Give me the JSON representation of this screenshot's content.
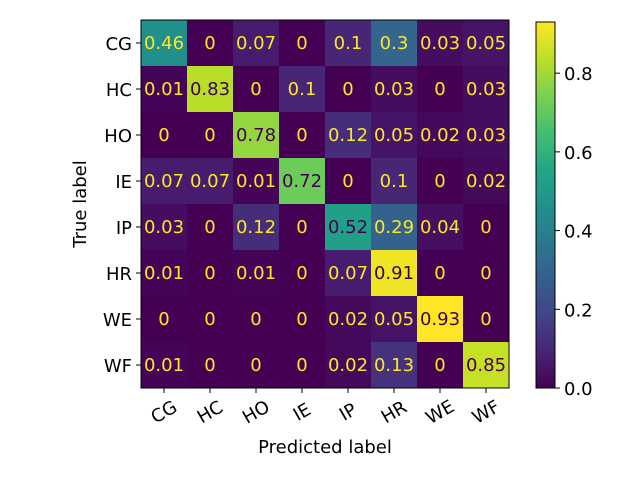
{
  "chart_data": {
    "type": "heatmap",
    "title": "",
    "xlabel": "Predicted label",
    "ylabel": "True label",
    "x_categories": [
      "CG",
      "HC",
      "HO",
      "IE",
      "IP",
      "HR",
      "WE",
      "WF"
    ],
    "y_categories": [
      "CG",
      "HC",
      "HO",
      "IE",
      "IP",
      "HR",
      "WE",
      "WF"
    ],
    "values": [
      [
        0.46,
        0,
        0.07,
        0,
        0.1,
        0.3,
        0.03,
        0.05
      ],
      [
        0.01,
        0.83,
        0,
        0.1,
        0,
        0.03,
        0,
        0.03
      ],
      [
        0,
        0,
        0.78,
        0,
        0.12,
        0.05,
        0.02,
        0.03
      ],
      [
        0.07,
        0.07,
        0.01,
        0.72,
        0,
        0.1,
        0,
        0.02
      ],
      [
        0.03,
        0,
        0.12,
        0,
        0.52,
        0.29,
        0.04,
        0
      ],
      [
        0.01,
        0,
        0.01,
        0,
        0.07,
        0.91,
        0,
        0
      ],
      [
        0,
        0,
        0,
        0,
        0.02,
        0.05,
        0.93,
        0
      ],
      [
        0.01,
        0,
        0,
        0,
        0.02,
        0.13,
        0,
        0.85
      ]
    ],
    "colormap": "viridis",
    "colorbar": {
      "range": [
        0,
        0.93
      ],
      "ticks": [
        0.0,
        0.2,
        0.4,
        0.6,
        0.8
      ],
      "tick_labels": [
        "0.0",
        "0.2",
        "0.4",
        "0.6",
        "0.8"
      ]
    },
    "text_color_light": "#fde725",
    "text_color_dark": "#440154",
    "grid": false
  }
}
